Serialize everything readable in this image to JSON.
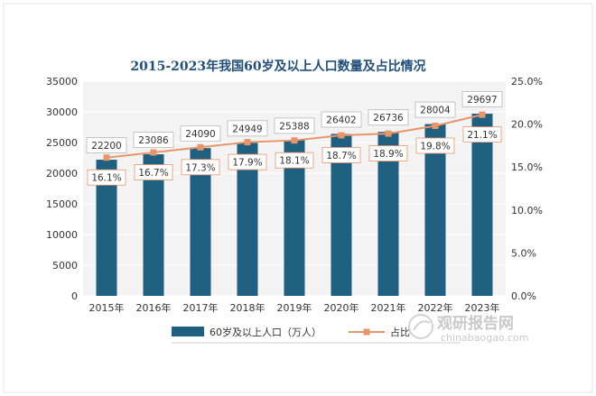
{
  "chart_data": {
    "type": "bar",
    "title": "2015-2023年我国60岁及以上人口数量及占比情况",
    "categories": [
      "2015年",
      "2016年",
      "2017年",
      "2018年",
      "2019年",
      "2020年",
      "2021年",
      "2022年",
      "2023年"
    ],
    "series": [
      {
        "name": "60岁及以上人口（万人）",
        "type": "bar",
        "axis": "left",
        "color": "#1f5f7f",
        "values": [
          22200,
          23086,
          24090,
          24949,
          25388,
          26402,
          26736,
          28004,
          29697
        ],
        "labels": [
          "22200",
          "23086",
          "24090",
          "24949",
          "25388",
          "26402",
          "26736",
          "28004",
          "29697"
        ]
      },
      {
        "name": "占比",
        "type": "line",
        "axis": "right",
        "color": "#e8956a",
        "values": [
          16.1,
          16.7,
          17.3,
          17.9,
          18.1,
          18.7,
          18.9,
          19.8,
          21.1
        ],
        "labels": [
          "16.1%",
          "16.7%",
          "17.3%",
          "17.9%",
          "18.1%",
          "18.7%",
          "18.9%",
          "19.8%",
          "21.1%"
        ]
      }
    ],
    "y_left": {
      "min": 0,
      "max": 35000,
      "ticks": [
        "0",
        "5000",
        "10000",
        "15000",
        "20000",
        "25000",
        "30000",
        "35000"
      ]
    },
    "y_right": {
      "min": 0,
      "max": 25,
      "ticks": [
        "0.0%",
        "5.0%",
        "10.0%",
        "15.0%",
        "20.0%",
        "25.0%"
      ]
    },
    "legend_position": "bottom"
  },
  "watermark": {
    "text_cn": "观研报告网",
    "text_en": "chinabaogao.com"
  }
}
